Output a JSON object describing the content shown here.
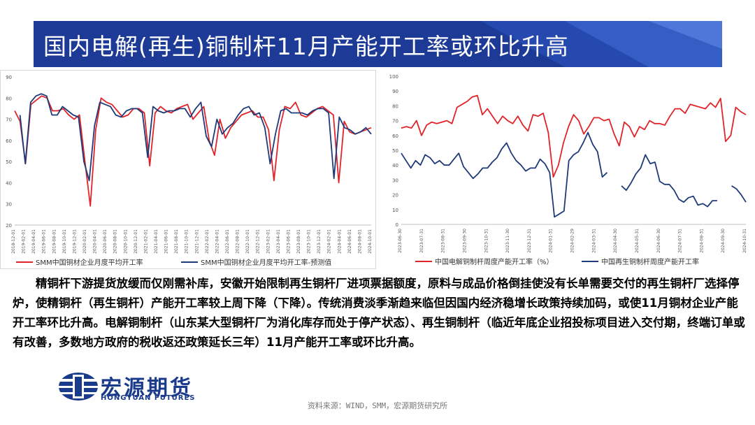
{
  "header": {
    "title": "国内电解(再生)铜制杆11月产能开工率或环比升高"
  },
  "colors": {
    "banner": "#1c3a96",
    "red": "#e0242a",
    "navy": "#1f3a78"
  },
  "chart_data": [
    {
      "type": "line",
      "xlabel": "",
      "ylabel": "",
      "ylim": [
        20,
        90
      ],
      "yticks": [
        20,
        30,
        40,
        50,
        60,
        70,
        80,
        90
      ],
      "grid": false,
      "legend_position": "bottom",
      "tick_labels": [
        "2018-12-01",
        "2019-02-01",
        "2019-04-01",
        "2019-06-01",
        "2019-08-01",
        "2019-10-01",
        "2019-12-01",
        "2020-02-01",
        "2020-04-01",
        "2020-06-01",
        "2020-08-01",
        "2020-10-01",
        "2020-12-01",
        "2021-02-01",
        "2021-04-01",
        "2021-06-01",
        "2021-08-01",
        "2021-10-01",
        "2021-12-01",
        "2022-02-01",
        "2022-04-01",
        "2022-06-01",
        "2022-08-01",
        "2022-10-01",
        "2022-12-01",
        "2023-02-01",
        "2023-04-01",
        "2023-06-01",
        "2023-08-01",
        "2023-10-01",
        "2023-12-01",
        "2024-02-01",
        "2024-04-01",
        "2024-06-01",
        "2024-08-01",
        "2024-10-01"
      ],
      "series": [
        {
          "name": "SMM中国铜材企业月度平均开工率",
          "color": "#e0242a",
          "values": [
            74,
            69,
            49,
            77,
            79,
            81,
            80,
            74,
            74,
            75,
            72,
            70,
            72,
            50,
            29,
            65,
            80,
            78,
            77,
            74,
            71,
            72,
            75,
            75,
            73,
            48,
            73,
            76,
            74,
            73,
            75,
            76,
            77,
            70,
            73,
            76,
            60,
            53,
            70,
            61,
            66,
            69,
            72,
            73,
            74,
            71,
            71,
            65,
            41,
            65,
            76,
            75,
            78,
            72,
            71,
            73,
            75,
            76,
            74,
            72,
            40,
            69,
            64,
            63,
            64,
            65,
            66
          ]
        },
        {
          "name": "SMM中国铜材企业月度平均开工率-预测值",
          "color": "#1f3a78",
          "values": [
            null,
            72,
            49,
            78,
            81,
            82,
            81,
            72,
            72,
            76,
            74,
            72,
            71,
            50,
            41,
            67,
            78,
            77,
            76,
            72,
            71,
            74,
            75,
            75,
            73,
            52,
            76,
            74,
            73,
            74,
            74,
            75,
            75,
            71,
            75,
            78,
            62,
            57,
            70,
            63,
            66,
            68,
            72,
            75,
            76,
            72,
            73,
            66,
            49,
            63,
            74,
            75,
            73,
            73,
            73,
            72,
            74,
            75,
            75,
            73,
            42,
            71,
            66,
            65,
            63,
            64,
            66,
            63
          ]
        }
      ]
    },
    {
      "type": "line",
      "xlabel": "",
      "ylabel": "",
      "ylim": [
        0,
        100
      ],
      "yticks": [
        0,
        10,
        20,
        30,
        40,
        50,
        60,
        70,
        80,
        90,
        100
      ],
      "grid": false,
      "legend_position": "bottom",
      "tick_labels": [
        "2023-06-30",
        "2023-07-31",
        "2023-08-31",
        "2023-09-30",
        "2023-10-31",
        "2023-11-30",
        "2023-12-31",
        "2024-01-31",
        "2024-02-29",
        "2024-03-31",
        "2024-04-30",
        "2024-05-31",
        "2024-06-30",
        "2024-07-31",
        "2024-08-31",
        "2024-09-30",
        "2024-10-31"
      ],
      "series": [
        {
          "name": "中国电解铜制杆周度产能开工率（%）",
          "color": "#e0242a",
          "values": [
            65,
            66,
            65,
            70,
            60,
            67,
            69,
            68,
            69,
            70,
            68,
            79,
            81,
            83,
            86,
            87,
            74,
            78,
            73,
            68,
            73,
            70,
            68,
            73,
            67,
            63,
            74,
            73,
            75,
            62,
            32,
            40,
            55,
            66,
            74,
            70,
            61,
            66,
            72,
            72,
            70,
            71,
            61,
            53,
            69,
            66,
            59,
            66,
            64,
            70,
            68,
            68,
            67,
            73,
            78,
            78,
            75,
            81,
            80,
            79,
            78,
            82,
            79,
            85,
            56,
            60,
            79,
            76,
            74
          ]
        },
        {
          "name": "中国再生铜制杆周度产能开工率",
          "color": "#1f3a78",
          "values": [
            48,
            43,
            38,
            43,
            40,
            47,
            45,
            41,
            43,
            40,
            40,
            44,
            48,
            39,
            35,
            31,
            34,
            38,
            38,
            42,
            45,
            51,
            55,
            48,
            43,
            40,
            36,
            38,
            38,
            44,
            41,
            35,
            5,
            7,
            9,
            43,
            47,
            49,
            55,
            62,
            54,
            49,
            32,
            35,
            null,
            null,
            26,
            23,
            28,
            34,
            38,
            47,
            41,
            42,
            29,
            27,
            27,
            23,
            17,
            15,
            18,
            19,
            13,
            14,
            12,
            16,
            16,
            null,
            null,
            26,
            24,
            20,
            15
          ]
        }
      ]
    }
  ],
  "body_text": "精铜杆下游提货放缓而仅刚需补库，安徽开始限制再生铜杆厂进项票据额度，原料与成品价格倒挂使没有长单需要交付的再生铜杆厂选择停炉，使精铜杆（再生铜杆）产能开工率较上周下降（下降）。传统消费淡季渐趋来临但因国内经济稳增长政策持续加码，或使11月铜材企业产能开工率环比升高。电解铜制杆（山东某大型铜杆厂为消化库存而处于停产状态）、再生铜制杆（临近年底企业招投标项目进入交付期，终端订单或有改善，多数地方政府的税收返还政策延长三年）11月产能开工率或环比升高。",
  "logo": {
    "name_cn": "宏源期货",
    "name_en": "HONGYUAN FUTURES"
  },
  "source": "资料来源：WIND，SMM，宏源期货研究所"
}
